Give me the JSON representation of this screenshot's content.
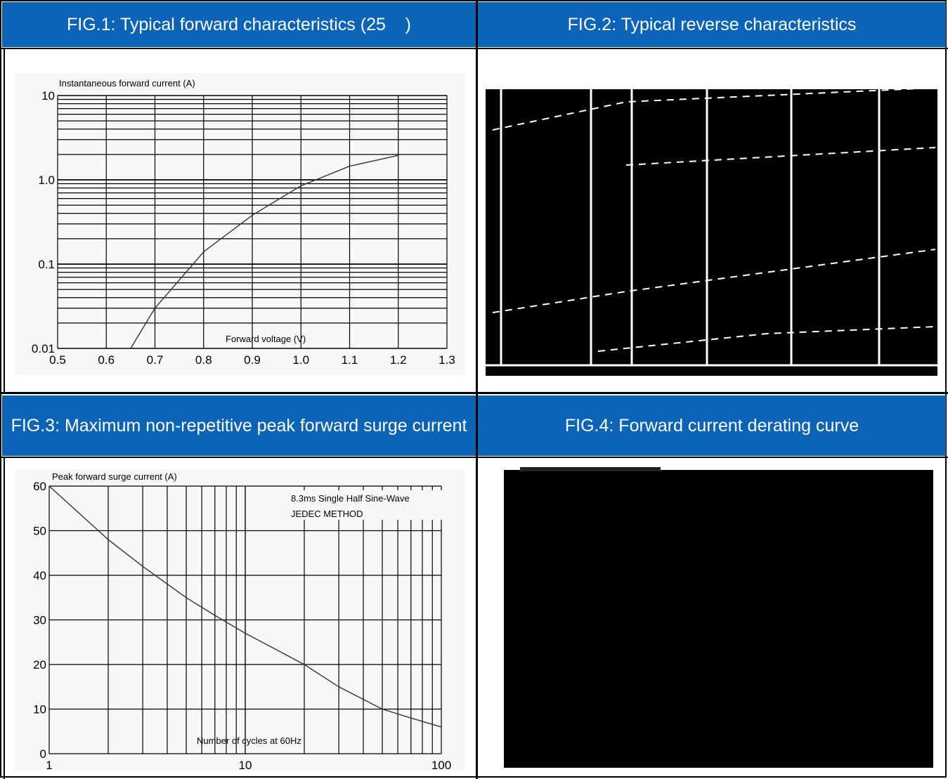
{
  "headers": {
    "fig1": "FIG.1: Typical forward characteristics (25    )",
    "fig2": "FIG.2: Typical reverse characteristics",
    "fig3": "FIG.3: Maximum non-repetitive peak forward surge current",
    "fig4": "FIG.4: Forward current derating curve"
  },
  "colors": {
    "header_bg": "#0b64b8",
    "header_text": "#ffffff",
    "plot_bg": "#f7f7f7"
  },
  "chart_data": [
    {
      "id": "fig1",
      "type": "line",
      "title": "",
      "ylabel": "Instantaneous forward current (A)",
      "xlabel": "Forward voltage (V)",
      "yscale": "log",
      "xlim": [
        0.5,
        1.3
      ],
      "ylim": [
        0.01,
        10
      ],
      "x_ticks": [
        "0.5",
        "0.6",
        "0.7",
        "0.8",
        "0.9",
        "1.0",
        "1.1",
        "1.2",
        "1.3"
      ],
      "y_ticks": [
        "0.01",
        "0.1",
        "1.0",
        "10"
      ],
      "grid": true,
      "series": [
        {
          "x": [
            0.65,
            0.7,
            0.8,
            0.9,
            1.0,
            1.1,
            1.2
          ],
          "y": [
            0.01,
            0.03,
            0.14,
            0.38,
            0.85,
            1.45,
            1.95
          ]
        }
      ]
    },
    {
      "id": "fig3",
      "type": "line",
      "title": "",
      "ylabel": "Peak forward surge current (A)",
      "xlabel": "Number of cycles at 60Hz",
      "xscale": "log",
      "xlim": [
        1,
        100
      ],
      "ylim": [
        0,
        60
      ],
      "x_ticks": [
        "1",
        "10",
        "100"
      ],
      "y_ticks": [
        "0",
        "10",
        "20",
        "30",
        "40",
        "50",
        "60"
      ],
      "annotation": [
        "8.3ms Single Half Sine-Wave",
        "JEDEC METHOD"
      ],
      "grid": true,
      "series": [
        {
          "x": [
            1,
            2,
            3,
            5,
            7,
            10,
            20,
            30,
            50,
            70,
            100
          ],
          "y": [
            60,
            48,
            42,
            35,
            31,
            27,
            20,
            15,
            10,
            8,
            6
          ]
        }
      ]
    }
  ]
}
